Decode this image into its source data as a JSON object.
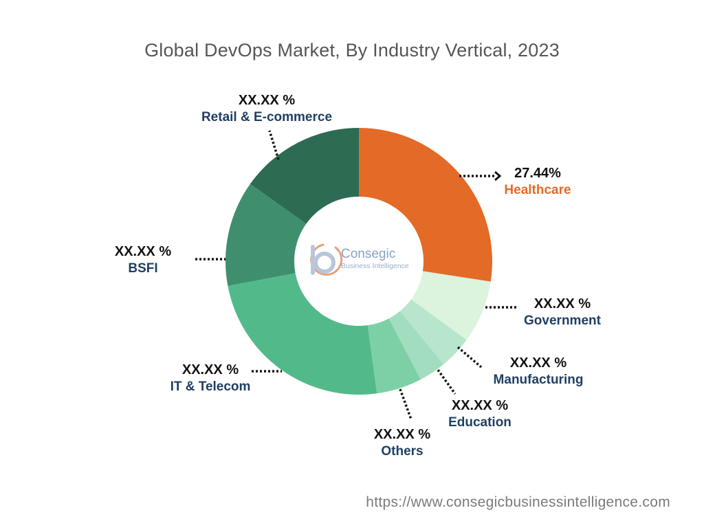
{
  "chart_data": {
    "type": "pie",
    "title": "Global DevOps Market, By Industry Vertical, 2023",
    "slices": [
      {
        "name": "Healthcare",
        "value": 27.44,
        "label": "27.44%",
        "color": "#e46a28"
      },
      {
        "name": "Government",
        "value": 7.6,
        "label": "XX.XX %",
        "color": "#dcf3dd"
      },
      {
        "name": "Manufacturing",
        "value": 4.0,
        "label": "XX.XX %",
        "color": "#b8e6cc"
      },
      {
        "name": "Education",
        "value": 3.3,
        "label": "XX.XX %",
        "color": "#a2ddbf"
      },
      {
        "name": "Others",
        "value": 5.5,
        "label": "XX.XX %",
        "color": "#7dcfa6"
      },
      {
        "name": "IT & Telecom",
        "value": 24.2,
        "label": "XX.XX %",
        "color": "#52ba8a"
      },
      {
        "name": "BSFI",
        "value": 12.8,
        "label": "XX.XX %",
        "color": "#3f8f6e"
      },
      {
        "name": "Retail & E-commerce",
        "value": 15.16,
        "label": "XX.XX %",
        "color": "#2d6b53"
      }
    ]
  },
  "logo": {
    "brand": "Consegic",
    "tagline": "Business Intelligence"
  },
  "footer": {
    "url": "https://www.consegicbusinessintelligence.com"
  }
}
